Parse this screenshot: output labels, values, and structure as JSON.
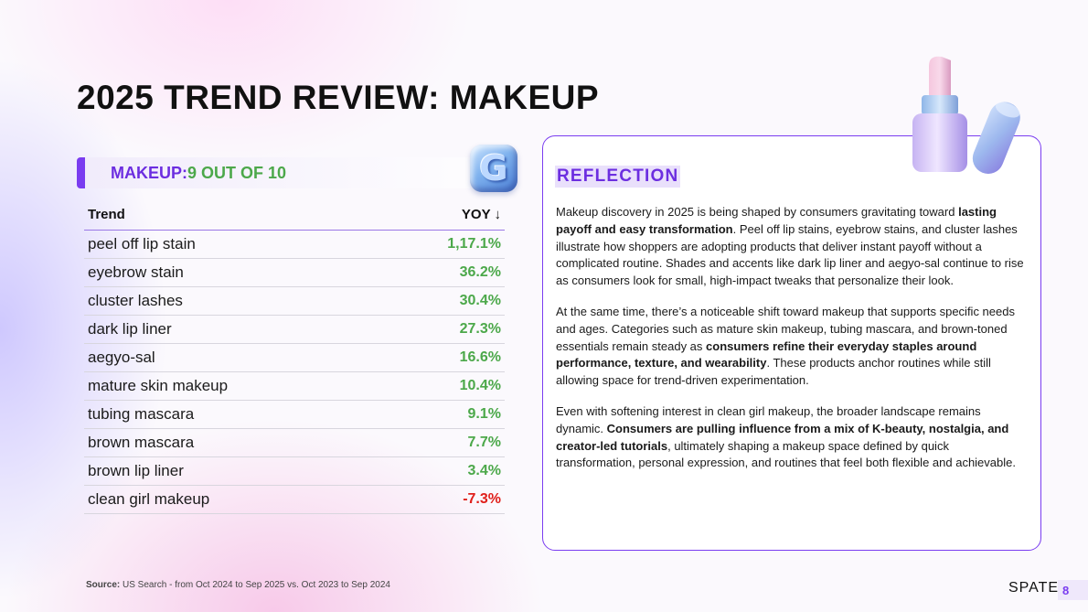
{
  "title": {
    "light": "2025 TREND REVIEW: ",
    "bold": "MAKEUP"
  },
  "score_banner": {
    "category": "MAKEUP:",
    "score": " 9 OUT OF 10"
  },
  "badge": {
    "letter": "G",
    "icon": "google-g-icon"
  },
  "table": {
    "col_trend": "Trend",
    "col_yoy": "YOY ↓",
    "rows": [
      {
        "trend": "peel off lip stain",
        "yoy": "1,17.1%",
        "status": "positive"
      },
      {
        "trend": "eyebrow stain",
        "yoy": "36.2%",
        "status": "positive"
      },
      {
        "trend": "cluster lashes",
        "yoy": "30.4%",
        "status": "positive"
      },
      {
        "trend": "dark lip liner",
        "yoy": "27.3%",
        "status": "positive"
      },
      {
        "trend": "aegyo-sal",
        "yoy": "16.6%",
        "status": "positive"
      },
      {
        "trend": "mature skin makeup",
        "yoy": "10.4%",
        "status": "positive"
      },
      {
        "trend": "tubing mascara",
        "yoy": "9.1%",
        "status": "positive"
      },
      {
        "trend": "brown mascara",
        "yoy": "7.7%",
        "status": "positive"
      },
      {
        "trend": "brown lip liner",
        "yoy": "3.4%",
        "status": "positive"
      },
      {
        "trend": "clean girl makeup",
        "yoy": "-7.3%",
        "status": "negative"
      }
    ]
  },
  "colors": {
    "positive": "#4ca84a",
    "negative": "#e0201b",
    "accent": "#7a3cf0"
  },
  "reflection": {
    "title": "REFLECTION",
    "p1": [
      {
        "t": "Makeup discovery in 2025 is being shaped by consumers gravitating toward "
      },
      {
        "t": "lasting payoff and easy transformation",
        "b": true
      },
      {
        "t": ". Peel off lip stains, eyebrow stains, and cluster lashes illustrate how shoppers are adopting products that deliver instant payoff without a complicated routine. Shades and accents like dark lip liner and aegyo-sal continue to rise as consumers look for small, high-impact tweaks that personalize their look."
      }
    ],
    "p2": [
      {
        "t": "At the same time, there’s a noticeable shift toward makeup that supports specific needs and ages. Categories such as mature skin makeup, tubing mascara, and brown-toned essentials remain steady as "
      },
      {
        "t": "consumers refine their everyday staples around performance, texture, and wearability",
        "b": true
      },
      {
        "t": ". These products anchor routines while still allowing space for trend-driven experimentation."
      }
    ],
    "p3": [
      {
        "t": "Even with softening interest in clean girl makeup, the broader landscape remains dynamic. "
      },
      {
        "t": "Consumers are pulling influence from a mix of K-beauty, nostalgia, and creator-led tutorials",
        "b": true
      },
      {
        "t": ", ultimately shaping a makeup space defined by quick transformation, personal expression, and routines that feel both flexible and achievable."
      }
    ]
  },
  "source": {
    "label": "Source:",
    "text": " US Search - from Oct 2024 to Sep 2025 vs. Oct 2023 to Sep 2024"
  },
  "footer": {
    "brand": "SPATE",
    "page": "8"
  },
  "illustration": {
    "icon": "lipstick-icon"
  }
}
